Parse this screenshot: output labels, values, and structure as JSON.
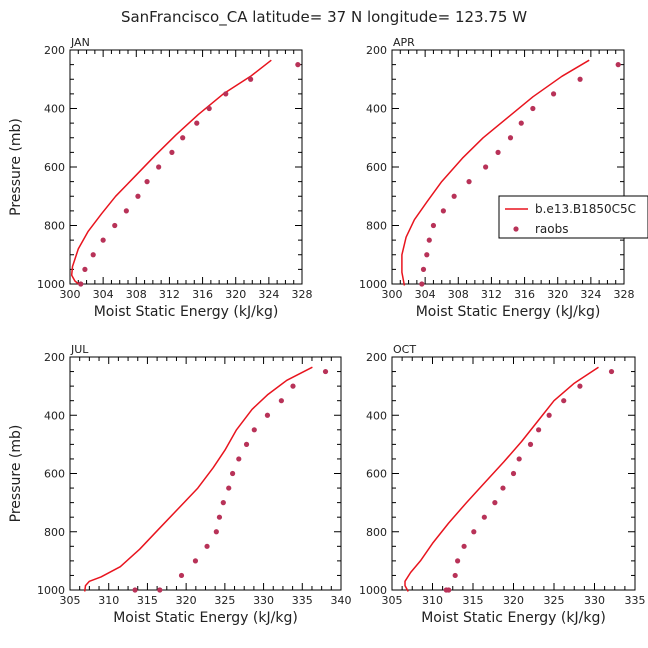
{
  "title": "SanFrancisco_CA  latitude= 37 N longitude= 123.75 W",
  "colors": {
    "model": "#e8141e",
    "raobs": "#b83258",
    "axis": "#000000",
    "text": "#222222"
  },
  "legend": {
    "placement": "right of APR panel",
    "model_label": "b.e13.B1850C5C",
    "obs_label": "raobs"
  },
  "chart_data": [
    {
      "type": "line",
      "panel": "JAN",
      "title": "JAN",
      "xlabel": "Moist Static Energy (kJ/kg)",
      "ylabel": "Pressure (mb)",
      "xlim": [
        300,
        328
      ],
      "xticks": [
        300,
        304,
        308,
        312,
        316,
        320,
        324,
        328
      ],
      "ylim": [
        1000,
        200
      ],
      "yticks": [
        200,
        400,
        600,
        800,
        1000
      ],
      "series": [
        {
          "name": "b.e13.B1850C5C",
          "kind": "line",
          "x": [
            324.3,
            321.8,
            318.5,
            315.5,
            312.8,
            310.3,
            307.9,
            305.5,
            303.8,
            302.2,
            301.0,
            300.3,
            300.2,
            300.6,
            301.3
          ],
          "y": [
            235,
            290,
            350,
            420,
            490,
            560,
            630,
            700,
            760,
            820,
            880,
            940,
            970,
            990,
            1005
          ]
        },
        {
          "name": "raobs",
          "kind": "scatter",
          "x": [
            327.5,
            321.8,
            318.8,
            316.8,
            315.3,
            313.6,
            312.3,
            310.7,
            309.3,
            308.2,
            306.8,
            305.4,
            304.0,
            302.8,
            301.8,
            301.3
          ],
          "y": [
            250,
            300,
            350,
            400,
            450,
            500,
            550,
            600,
            650,
            700,
            750,
            800,
            850,
            900,
            950,
            1000
          ]
        }
      ]
    },
    {
      "type": "line",
      "panel": "APR",
      "title": "APR",
      "xlabel": "Moist Static Energy (kJ/kg)",
      "ylabel": "",
      "xlim": [
        300,
        328
      ],
      "xticks": [
        300,
        304,
        308,
        312,
        316,
        320,
        324,
        328
      ],
      "ylim": [
        1000,
        200
      ],
      "yticks": [
        200,
        400,
        600,
        800,
        1000
      ],
      "series": [
        {
          "name": "b.e13.B1850C5C",
          "kind": "line",
          "x": [
            323.8,
            320.5,
            317.0,
            314.0,
            311.0,
            308.5,
            306.0,
            304.2,
            302.7,
            301.7,
            301.2,
            301.2,
            301.5
          ],
          "y": [
            235,
            290,
            360,
            430,
            500,
            570,
            650,
            720,
            780,
            840,
            900,
            960,
            1005
          ]
        },
        {
          "name": "raobs",
          "kind": "scatter",
          "x": [
            327.3,
            322.7,
            319.5,
            317.0,
            315.6,
            314.3,
            312.8,
            311.3,
            309.3,
            307.5,
            306.2,
            305.0,
            304.5,
            304.2,
            303.8,
            303.6
          ],
          "y": [
            250,
            300,
            350,
            400,
            450,
            500,
            550,
            600,
            650,
            700,
            750,
            800,
            850,
            900,
            950,
            1000
          ]
        }
      ]
    },
    {
      "type": "line",
      "panel": "JUL",
      "title": "JUL",
      "xlabel": "Moist Static Energy (kJ/kg)",
      "ylabel": "Pressure (mb)",
      "xlim": [
        305,
        340
      ],
      "xticks": [
        305,
        310,
        315,
        320,
        325,
        330,
        335,
        340
      ],
      "ylim": [
        1000,
        200
      ],
      "yticks": [
        200,
        400,
        600,
        800,
        1000
      ],
      "series": [
        {
          "name": "b.e13.B1850C5C",
          "kind": "line",
          "x": [
            336.3,
            333.0,
            330.5,
            328.5,
            326.5,
            325.0,
            323.5,
            321.5,
            319.0,
            316.5,
            314.0,
            311.5,
            309.0,
            307.5,
            307.0,
            306.9
          ],
          "y": [
            235,
            280,
            330,
            380,
            450,
            520,
            580,
            650,
            720,
            790,
            860,
            920,
            955,
            970,
            985,
            1005
          ]
        },
        {
          "name": "raobs",
          "kind": "scatter",
          "x": [
            338.0,
            333.8,
            332.3,
            330.5,
            328.8,
            327.8,
            326.8,
            326.0,
            325.5,
            324.8,
            324.3,
            323.9,
            322.7,
            321.2,
            319.4,
            316.6,
            313.4
          ],
          "y": [
            250,
            300,
            350,
            400,
            450,
            500,
            550,
            600,
            650,
            700,
            750,
            800,
            850,
            900,
            950,
            1000,
            1000
          ]
        }
      ]
    },
    {
      "type": "line",
      "panel": "OCT",
      "title": "OCT",
      "xlabel": "Moist Static Energy (kJ/kg)",
      "ylabel": "",
      "xlim": [
        305,
        335
      ],
      "xticks": [
        305,
        310,
        315,
        320,
        325,
        330,
        335
      ],
      "ylim": [
        1000,
        200
      ],
      "yticks": [
        200,
        400,
        600,
        800,
        1000
      ],
      "series": [
        {
          "name": "b.e13.B1850C5C",
          "kind": "line",
          "x": [
            330.5,
            327.5,
            325.0,
            323.0,
            321.0,
            318.8,
            316.5,
            314.2,
            312.0,
            310.0,
            308.5,
            307.3,
            306.6,
            306.6,
            307.0
          ],
          "y": [
            235,
            290,
            350,
            420,
            490,
            560,
            630,
            700,
            770,
            840,
            900,
            940,
            970,
            985,
            1005
          ]
        },
        {
          "name": "raobs",
          "kind": "scatter",
          "x": [
            332.1,
            328.2,
            326.2,
            324.4,
            323.1,
            322.1,
            320.7,
            320.0,
            318.7,
            317.7,
            316.4,
            315.1,
            313.9,
            313.1,
            312.8,
            312.0,
            311.7
          ],
          "y": [
            250,
            300,
            350,
            400,
            450,
            500,
            550,
            600,
            650,
            700,
            750,
            800,
            850,
            900,
            950,
            1000,
            1000
          ]
        }
      ]
    }
  ]
}
